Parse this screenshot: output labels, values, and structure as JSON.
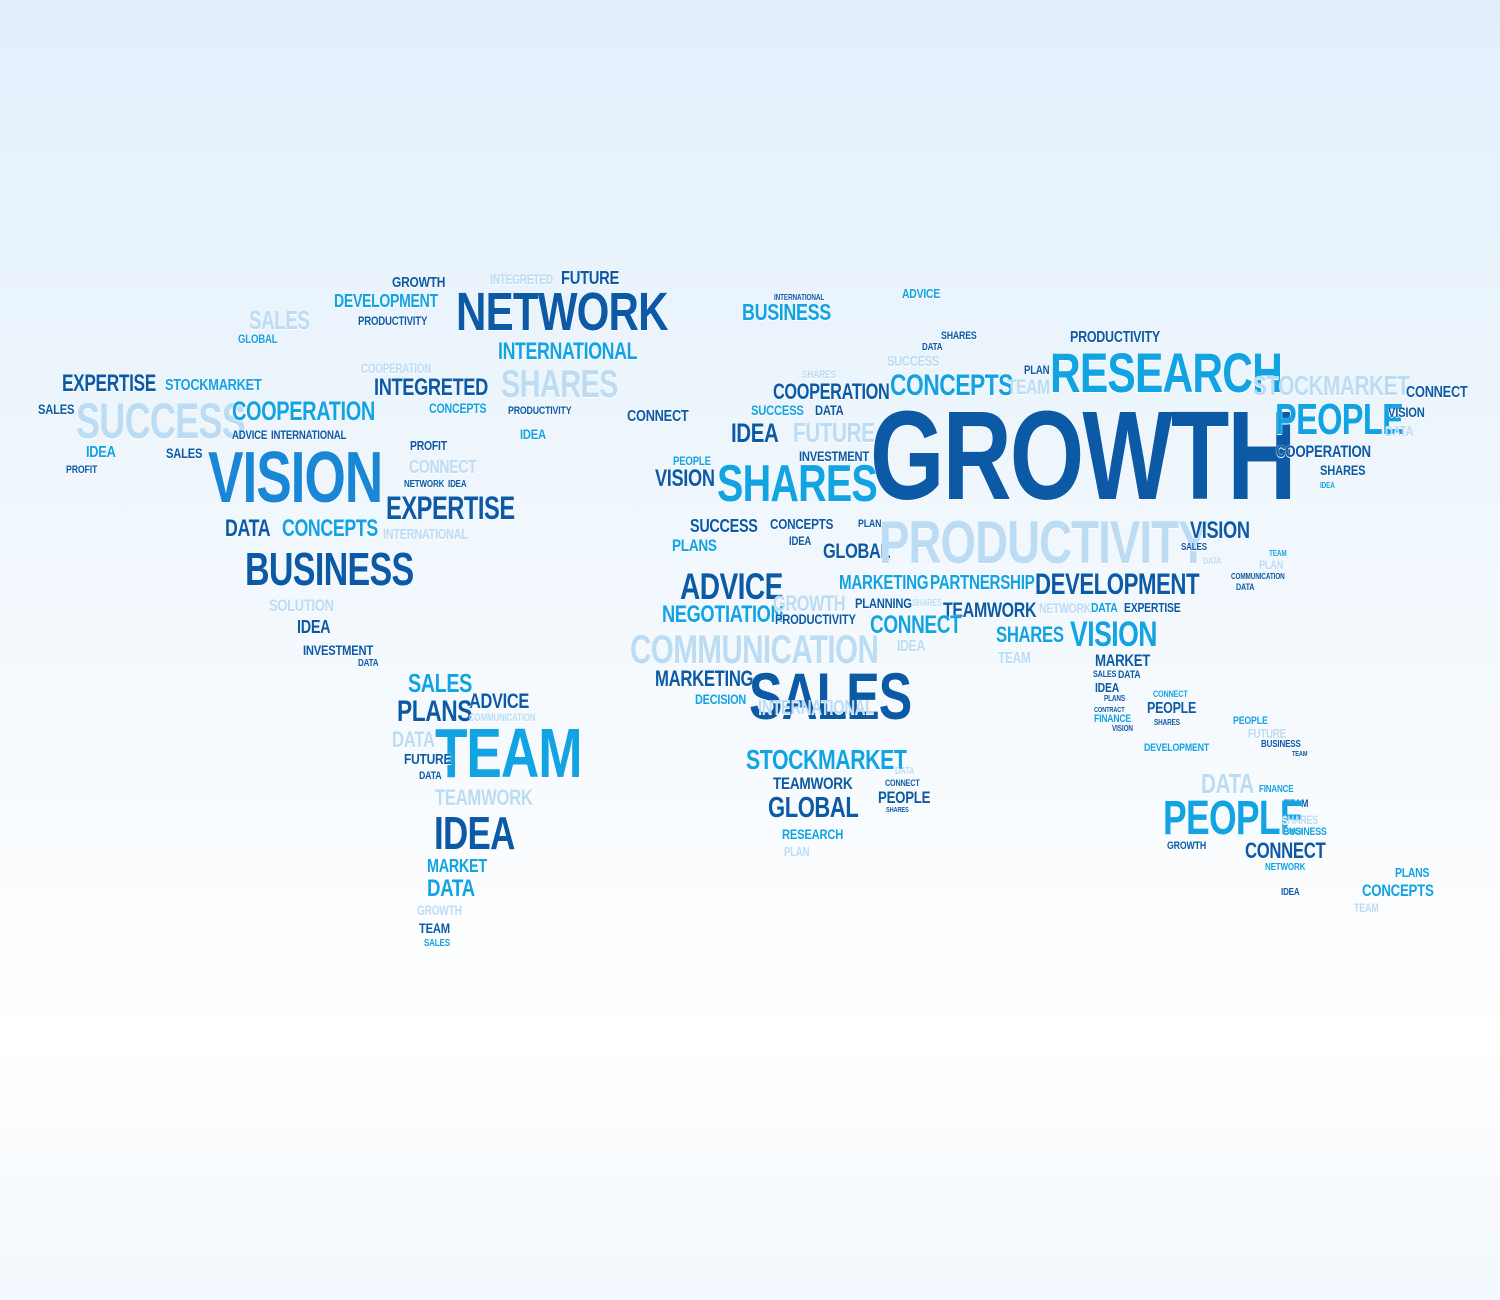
{
  "words": {
    "w000": "GROWTH",
    "w001": "INTEGRETED",
    "w002": "FUTURE",
    "w003": "DEVELOPMENT",
    "w004": "NETWORK",
    "w005": "SALES",
    "w006": "PRODUCTIVITY",
    "w007": "GLOBAL",
    "w008": "INTERNATIONAL",
    "w009": "COOPERATION",
    "w010": "EXPERTISE",
    "w011": "STOCKMARKET",
    "w012": "INTEGRETED",
    "w013": "SHARES",
    "w014": "SALES",
    "w015": "SUCCESS",
    "w016": "COOPERATION",
    "w017": "CONCEPTS",
    "w018": "PRODUCTIVITY",
    "w019": "CONNECT",
    "w020": "ADVICE",
    "w021": "INTERNATIONAL",
    "w022": "IDEA",
    "w023": "IDEA",
    "w024": "SALES",
    "w025": "PROFIT",
    "w026": "VISION",
    "w027": "PROFIT",
    "w028": "CONNECT",
    "w029": "NETWORK",
    "w030": "IDEA",
    "w031": "EXPERTISE",
    "w032": "DATA",
    "w033": "CONCEPTS",
    "w034": "INTERNATIONAL",
    "w035": "BUSINESS",
    "w036": "SOLUTION",
    "w037": "IDEA",
    "w038": "INVESTMENT",
    "w039": "DATA",
    "w040": "SALES",
    "w041": "ADVICE",
    "w042": "PLANS",
    "w043": "COMMUNICATION",
    "w044": "DATA",
    "w045": "TEAM",
    "w046": "FUTURE",
    "w047": "DATA",
    "w048": "TEAMWORK",
    "w049": "IDEA",
    "w050": "MARKET",
    "w051": "DATA",
    "w052": "GROWTH",
    "w053": "TEAM",
    "w054": "SALES",
    "w055": "INTERNATIONAL",
    "w056": "BUSINESS",
    "w057": "ADVICE",
    "w058": "SHARES",
    "w059": "DATA",
    "w060": "SUCCESS",
    "w061": "PRODUCTIVITY",
    "w062": "PLAN",
    "w063": "COOPERATION",
    "w064": "CONCEPTS",
    "w065": "TEAM",
    "w066": "RESEARCH",
    "w067": "STOCKMARKET",
    "w068": "CONNECT",
    "w069": "SHARES",
    "w070": "SUCCESS",
    "w071": "DATA",
    "w072": "IDEA",
    "w073": "FUTURE",
    "w074": "GROWTH",
    "w075": "PEOPLE",
    "w076": "VISION",
    "w077": "DATA",
    "w078": "INVESTMENT",
    "w079": "PEOPLE",
    "w080": "VISION",
    "w081": "SHARES",
    "w082": "COOPERATION",
    "w083": "SHARES",
    "w084": "IDEA",
    "w085": "SUCCESS",
    "w086": "CONCEPTS",
    "w087": "PLAN",
    "w088": "PLANS",
    "w089": "IDEA",
    "w090": "GLOBAL",
    "w091": "PRODUCTIVITY",
    "w092": "VISION",
    "w093": "SALES",
    "w094": "DATA",
    "w095": "TEAM",
    "w096": "PLAN",
    "w097": "COMMUNICATION",
    "w098": "DATA",
    "w099": "ADVICE",
    "w100": "MARKETING",
    "w101": "PARTNERSHIP",
    "w102": "DEVELOPMENT",
    "w103": "NEGOTIATION",
    "w104": "GROWTH",
    "w105": "PRODUCTIVITY",
    "w106": "PLANNING",
    "w107": "SHARES",
    "w108": "TEAMWORK",
    "w109": "NETWORK",
    "w110": "DATA",
    "w111": "EXPERTISE",
    "w112": "CONNECT",
    "w113": "COMMUNICATION",
    "w114": "IDEA",
    "w115": "SHARES",
    "w116": "VISION",
    "w117": "TEAM",
    "w118": "MARKETING",
    "w119": "SALES",
    "w120": "MARKET",
    "w121": "DECISION",
    "w122": "SALES",
    "w123": "DATA",
    "w124": "IDEA",
    "w125": "CONNECT",
    "w126": "PLANS",
    "w127": "PEOPLE",
    "w128": "CONTRACT",
    "w129": "FINANCE",
    "w130": "SHARES",
    "w131": "VISION",
    "w132": "PEOPLE",
    "w133": "FUTURE",
    "w134": "INTERNATIONAL",
    "w135": "DEVELOPMENT",
    "w136": "BUSINESS",
    "w137": "TEAM",
    "w138": "STOCKMARKET",
    "w139": "DATA",
    "w140": "TEAMWORK",
    "w141": "CONNECT",
    "w142": "GLOBAL",
    "w143": "PEOPLE",
    "w144": "DATA",
    "w145": "SHARES",
    "w146": "FINANCE",
    "w147": "RESEARCH",
    "w148": "TEAM",
    "w149": "PEOPLE",
    "w150": "PLAN",
    "w151": "SHARES",
    "w152": "BUSINESS",
    "w153": "GROWTH",
    "w154": "CONNECT",
    "w155": "NETWORK",
    "w156": "PLANS",
    "w157": "IDEA",
    "w158": "CONCEPTS",
    "w159": "TEAM"
  }
}
